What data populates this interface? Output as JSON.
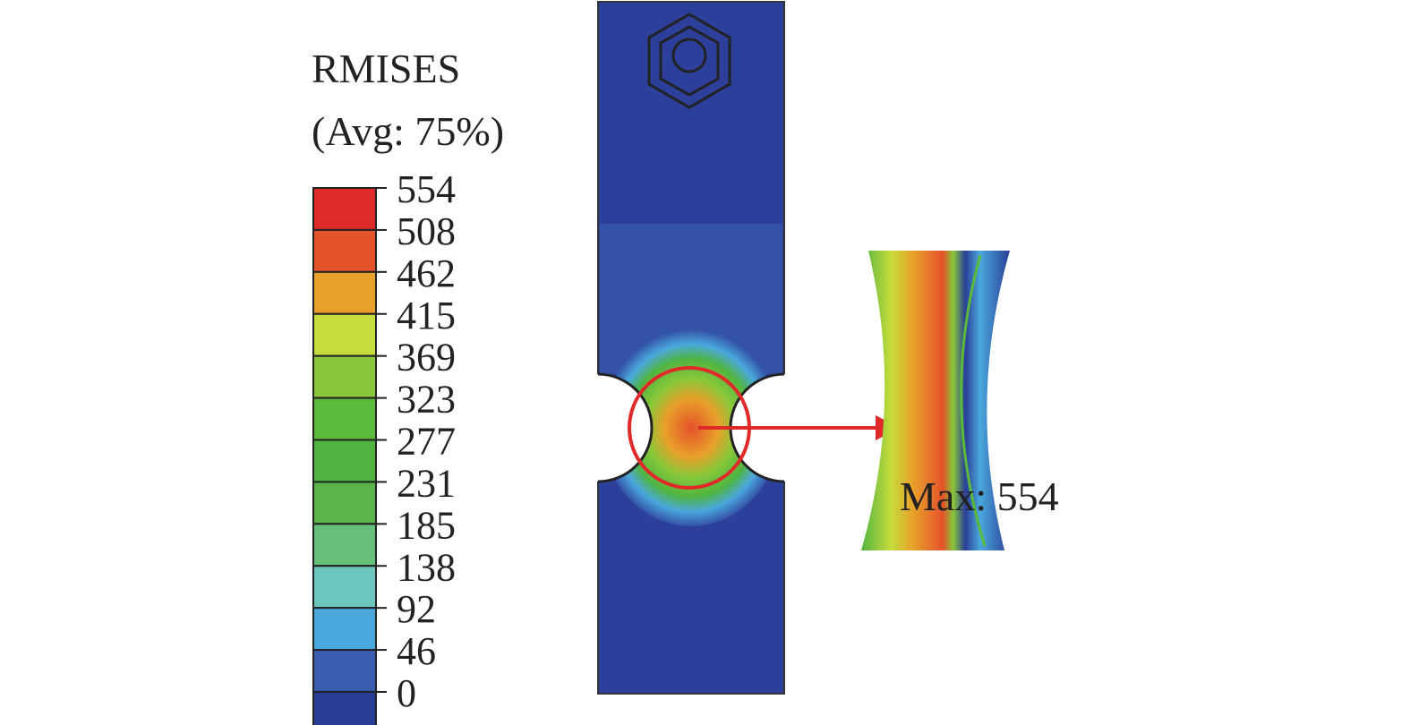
{
  "legend": {
    "title": "RMISES",
    "subtitle": "(Avg: 75%)",
    "levels": [
      554,
      508,
      462,
      415,
      369,
      323,
      277,
      231,
      185,
      138,
      92,
      46,
      0
    ],
    "colors": [
      "#e02a2a",
      "#e4522a",
      "#e8a02a",
      "#c6dc3c",
      "#88c83a",
      "#5cba3a",
      "#50b440",
      "#5ab448",
      "#66c07a",
      "#6cc6be",
      "#4aa8dc",
      "#3a5cb0",
      "#2a3e98"
    ]
  },
  "annotation": "Max: 554"
}
